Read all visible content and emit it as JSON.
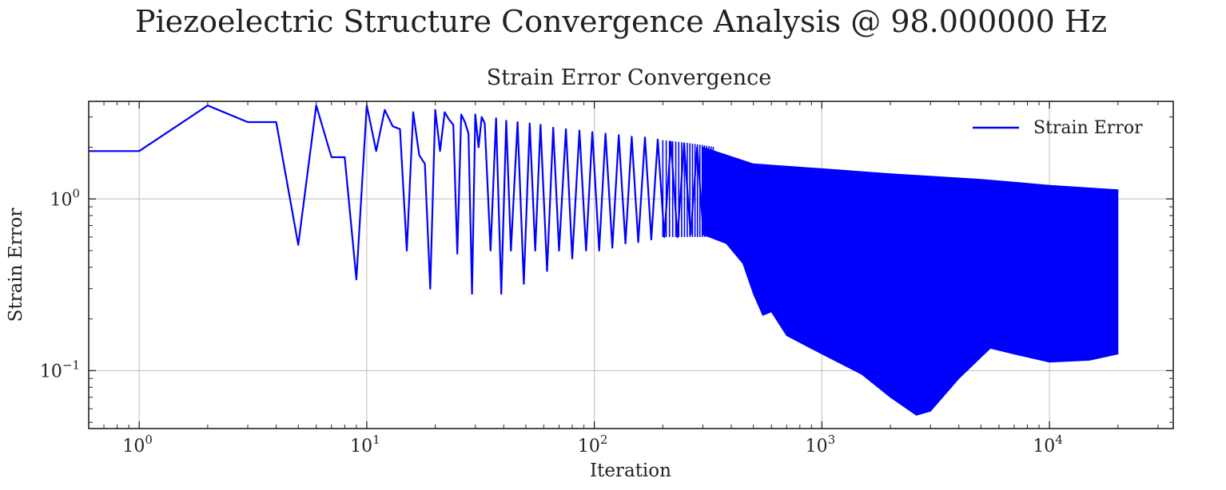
{
  "chart_data": {
    "type": "line",
    "title": "Piezoelectric Structure Convergence Analysis @ 98.000000 Hz",
    "subtitle": "Strain Error Convergence",
    "xlabel": "Iteration",
    "ylabel": "Strain Error",
    "xscale": "log",
    "yscale": "log",
    "xlim": [
      0.6,
      35000
    ],
    "ylim": [
      0.046,
      3.7
    ],
    "grid": true,
    "legend_placement": "top-right",
    "x_ticks": [
      {
        "base": "10",
        "exp": "0",
        "value": 1
      },
      {
        "base": "10",
        "exp": "1",
        "value": 10
      },
      {
        "base": "10",
        "exp": "2",
        "value": 100
      },
      {
        "base": "10",
        "exp": "3",
        "value": 1000
      },
      {
        "base": "10",
        "exp": "4",
        "value": 10000
      }
    ],
    "y_ticks": [
      {
        "base": "10",
        "exp": "0",
        "value": 1
      },
      {
        "base": "10",
        "exp": "−1",
        "value": 0.1
      }
    ],
    "series": [
      {
        "name": "Strain Error",
        "color": "#0000ff",
        "early_points": [
          [
            0,
            1.9
          ],
          [
            1,
            1.9
          ],
          [
            2,
            3.5
          ],
          [
            3,
            2.8
          ],
          [
            4,
            2.8
          ],
          [
            5,
            0.54
          ],
          [
            6,
            3.5
          ],
          [
            7,
            1.75
          ],
          [
            8,
            1.75
          ],
          [
            9,
            0.34
          ],
          [
            10,
            3.5
          ],
          [
            11,
            1.9
          ],
          [
            12,
            3.3
          ],
          [
            13,
            2.65
          ],
          [
            14,
            2.55
          ],
          [
            15,
            0.5
          ],
          [
            16,
            3.2
          ],
          [
            17,
            1.8
          ],
          [
            18,
            1.6
          ],
          [
            19,
            0.3
          ],
          [
            20,
            3.3
          ],
          [
            21,
            1.9
          ],
          [
            22,
            3.2
          ],
          [
            23,
            2.9
          ],
          [
            24,
            2.7
          ],
          [
            25,
            0.48
          ],
          [
            26,
            3.1
          ],
          [
            27,
            2.8
          ],
          [
            28,
            2.4
          ],
          [
            29,
            0.28
          ],
          [
            30,
            3.1
          ],
          [
            31,
            2.0
          ],
          [
            32,
            3.0
          ],
          [
            33,
            2.75
          ],
          [
            35,
            0.5
          ],
          [
            37,
            2.95
          ],
          [
            39,
            0.28
          ],
          [
            41,
            2.85
          ],
          [
            43,
            0.5
          ],
          [
            46,
            2.8
          ],
          [
            49,
            0.32
          ],
          [
            52,
            2.75
          ],
          [
            55,
            0.5
          ],
          [
            58,
            2.7
          ],
          [
            62,
            0.38
          ],
          [
            66,
            2.6
          ],
          [
            70,
            0.5
          ],
          [
            75,
            2.55
          ],
          [
            80,
            0.45
          ],
          [
            86,
            2.5
          ],
          [
            92,
            0.5
          ],
          [
            98,
            2.45
          ],
          [
            105,
            0.5
          ],
          [
            112,
            2.4
          ],
          [
            120,
            0.52
          ],
          [
            128,
            2.35
          ],
          [
            137,
            0.55
          ],
          [
            146,
            2.3
          ],
          [
            156,
            0.56
          ],
          [
            167,
            2.28
          ],
          [
            178,
            0.58
          ],
          [
            190,
            2.22
          ],
          [
            203,
            0.6
          ],
          [
            217,
            2.15
          ],
          [
            232,
            0.6
          ],
          [
            248,
            2.1
          ],
          [
            265,
            0.62
          ],
          [
            283,
            2.0
          ],
          [
            302,
            0.62
          ]
        ],
        "upper_envelope": [
          [
            300,
            2.0
          ],
          [
            500,
            1.6
          ],
          [
            1000,
            1.5
          ],
          [
            2000,
            1.4
          ],
          [
            5000,
            1.3
          ],
          [
            10000,
            1.2
          ],
          [
            20000,
            1.13
          ]
        ],
        "lower_envelope": [
          [
            300,
            0.62
          ],
          [
            380,
            0.55
          ],
          [
            450,
            0.42
          ],
          [
            500,
            0.28
          ],
          [
            550,
            0.21
          ],
          [
            600,
            0.22
          ],
          [
            700,
            0.16
          ],
          [
            1000,
            0.125
          ],
          [
            1500,
            0.095
          ],
          [
            2000,
            0.07
          ],
          [
            2600,
            0.055
          ],
          [
            3000,
            0.058
          ],
          [
            4000,
            0.09
          ],
          [
            5500,
            0.135
          ],
          [
            7000,
            0.125
          ],
          [
            10000,
            0.112
          ],
          [
            15000,
            0.115
          ],
          [
            20000,
            0.125
          ]
        ]
      }
    ]
  }
}
